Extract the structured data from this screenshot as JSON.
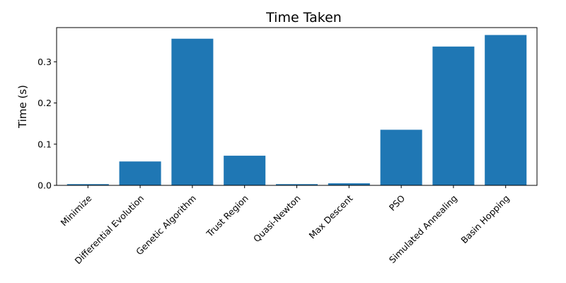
{
  "chart_data": {
    "type": "bar",
    "title": "Time Taken",
    "xlabel": "",
    "ylabel": "Time (s)",
    "categories": [
      "Minimize",
      "Differential Evolution",
      "Genetic Algorithm",
      "Trust Region",
      "Quasi-Newton",
      "Max Descent",
      "PSO",
      "Simulated Annealing",
      "Basin Hopping"
    ],
    "values": [
      0.003,
      0.058,
      0.356,
      0.072,
      0.003,
      0.005,
      0.135,
      0.337,
      0.365
    ],
    "ylim": [
      0,
      0.383
    ],
    "yticks": [
      0.0,
      0.1,
      0.2,
      0.3
    ],
    "ytick_labels": [
      "0.0",
      "0.1",
      "0.2",
      "0.3"
    ],
    "grid": false,
    "bar_color": "#1f77b4",
    "x_tick_rotation_deg": 45
  }
}
